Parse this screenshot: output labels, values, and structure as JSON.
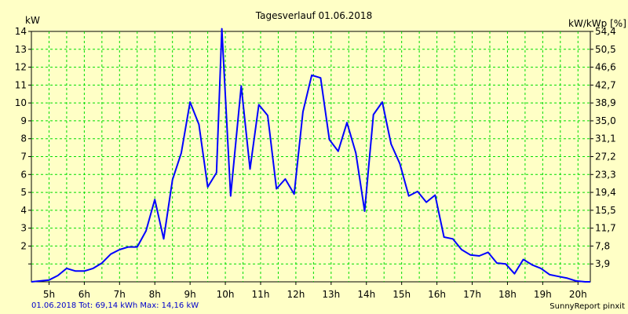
{
  "chart_data": {
    "type": "line",
    "title": "Tagesverlauf 01.06.2018",
    "ylabel_left": "kW",
    "ylabel_right": "kW/kWp [%]",
    "ylim": [
      0,
      14
    ],
    "xlim": [
      4.5,
      20.35
    ],
    "y_ticks": [
      "",
      "2",
      "3",
      "4",
      "5",
      "6",
      "7",
      "8",
      "9",
      "10",
      "11",
      "12",
      "13",
      "14"
    ],
    "y_right_ticks": [
      "3,9",
      "7,8",
      "11,7",
      "15,5",
      "19,4",
      "23,3",
      "27,2",
      "31,1",
      "35,0",
      "38,9",
      "42,7",
      "46,6",
      "50,5",
      "54,4"
    ],
    "x_ticks": [
      "5h",
      "6h",
      "7h",
      "8h",
      "9h",
      "10h",
      "11h",
      "12h",
      "13h",
      "14h",
      "15h",
      "16h",
      "17h",
      "18h",
      "19h",
      "20h"
    ],
    "grid": true,
    "line_color": "#0000ff",
    "grid_color": "#00dd00",
    "background": "#ffffc6",
    "series": [
      {
        "x": [
          4.5,
          4.75,
          5.0,
          5.25,
          5.5,
          5.75,
          6.0,
          6.25,
          6.5,
          6.75,
          7.0,
          7.25,
          7.5,
          7.75,
          8.0,
          8.25,
          8.5,
          8.75,
          9.0,
          9.25,
          9.5,
          9.75,
          9.9,
          10.15,
          10.45,
          10.7,
          10.95,
          11.2,
          11.45,
          11.7,
          11.95,
          12.2,
          12.45,
          12.7,
          12.95,
          13.2,
          13.45,
          13.7,
          13.95,
          14.2,
          14.45,
          14.7,
          14.95,
          15.2,
          15.45,
          15.7,
          15.95,
          16.2,
          16.45,
          16.7,
          16.95,
          17.2,
          17.45,
          17.7,
          17.95,
          18.2,
          18.45,
          18.7,
          18.95,
          19.2,
          19.45,
          19.7,
          19.95,
          20.2,
          20.35
        ],
        "y": [
          0.0,
          0.05,
          0.1,
          0.35,
          0.75,
          0.6,
          0.6,
          0.75,
          1.05,
          1.55,
          1.8,
          1.95,
          1.95,
          2.85,
          4.6,
          2.4,
          5.7,
          7.2,
          10.05,
          8.8,
          5.3,
          6.1,
          14.15,
          4.8,
          10.95,
          6.3,
          9.9,
          9.3,
          5.2,
          5.75,
          4.9,
          9.5,
          11.55,
          11.4,
          7.95,
          7.3,
          8.9,
          7.2,
          3.95,
          9.35,
          10.05,
          7.7,
          6.6,
          4.8,
          5.05,
          4.45,
          4.85,
          2.5,
          2.4,
          1.8,
          1.5,
          1.45,
          1.65,
          1.05,
          1.0,
          0.45,
          1.25,
          0.95,
          0.75,
          0.4,
          0.3,
          0.2,
          0.05,
          0.0,
          0.0
        ]
      }
    ]
  },
  "footer": {
    "left": "01.06.2018 Tot: 69,14 kWh Max: 14,16 kW",
    "right": "SunnyReport pinxit"
  }
}
